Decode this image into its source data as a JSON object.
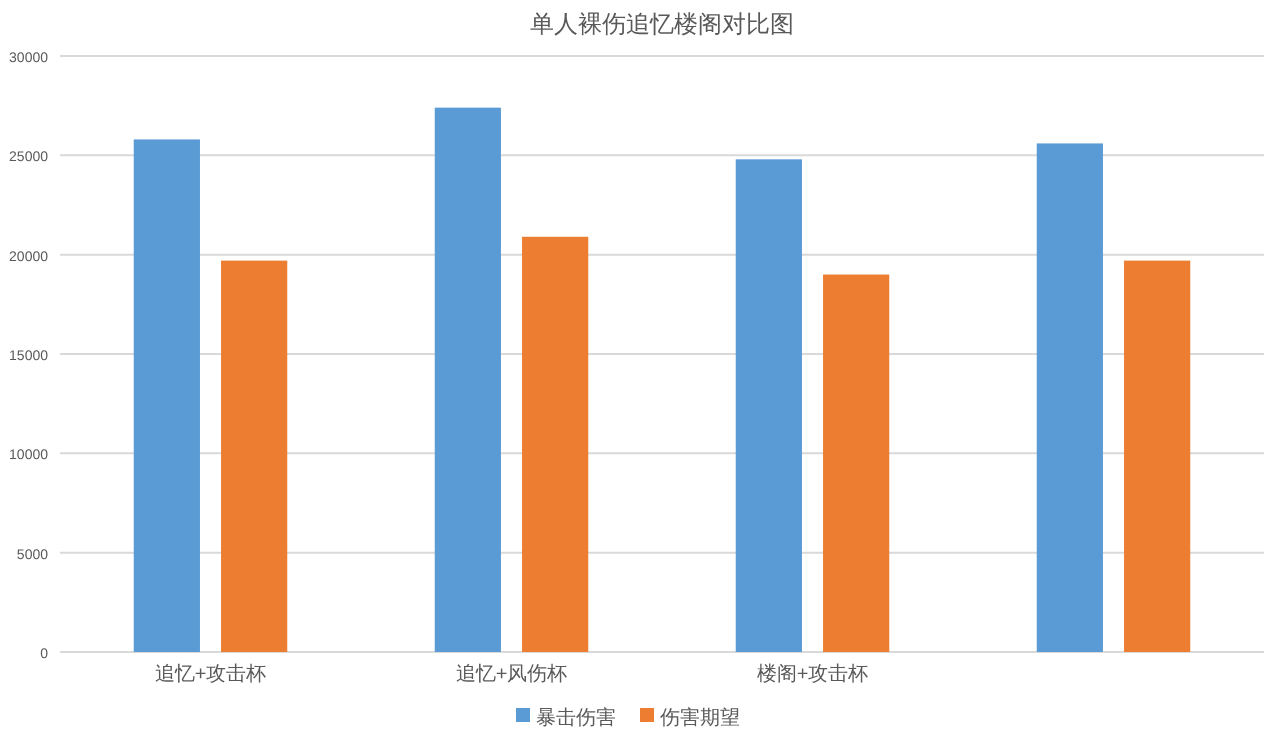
{
  "chart_data": {
    "type": "bar",
    "title": "单人裸伤追忆楼阁对比图",
    "categories": [
      "追忆+攻击杯",
      "追忆+风伤杯",
      "楼阁+攻击杯",
      null
    ],
    "series": [
      {
        "name": "暴击伤害",
        "color": "#5b9bd5",
        "values": [
          25800,
          27400,
          24800,
          25600
        ]
      },
      {
        "name": "伤害期望",
        "color": "#ed7d31",
        "values": [
          19700,
          20900,
          19000,
          19700
        ]
      }
    ],
    "ylim": [
      0,
      30000
    ],
    "yticks": [
      0,
      5000,
      10000,
      15000,
      20000,
      25000,
      30000
    ],
    "grid": "y",
    "legend": "bottom"
  }
}
